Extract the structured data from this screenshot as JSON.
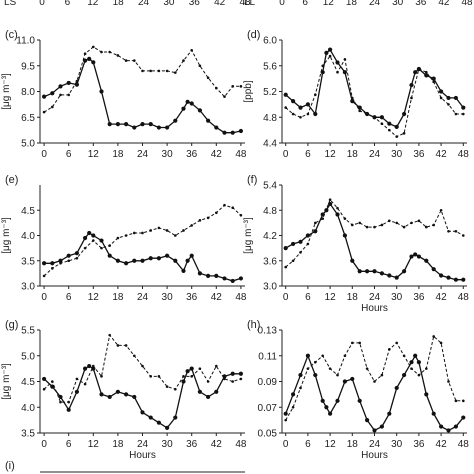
{
  "top_strip": {
    "left_hours": [
      "0",
      "6",
      "12",
      "18",
      "24",
      "30",
      "36",
      "42",
      "48"
    ],
    "left_cut_label": "LS",
    "right_cut_label": "LL"
  },
  "chart_data": [
    {
      "id": "c",
      "type": "line",
      "panel_label": "(c)",
      "ylabel": "[μg m⁻³]",
      "xlabel": "",
      "ylim": [
        5.0,
        11.0
      ],
      "yticks": [
        "5.0",
        "6.5",
        "8.0",
        "9.5",
        "11.0"
      ],
      "xlim": [
        -1,
        49
      ],
      "xticks": [
        "0",
        "6",
        "12",
        "18",
        "24",
        "30",
        "36",
        "42",
        "48"
      ],
      "series": [
        {
          "style": "solid",
          "x": [
            0,
            2,
            4,
            6,
            8,
            10,
            11,
            12,
            14,
            16,
            18,
            20,
            22,
            24,
            26,
            28,
            30,
            32,
            34,
            35,
            36,
            38,
            40,
            42,
            44,
            46,
            48
          ],
          "values": [
            7.7,
            7.9,
            8.3,
            8.5,
            8.4,
            9.8,
            9.9,
            9.7,
            8.0,
            6.1,
            6.1,
            6.1,
            5.9,
            6.1,
            6.1,
            5.9,
            5.9,
            6.3,
            7.0,
            7.4,
            7.3,
            6.9,
            6.3,
            5.9,
            5.6,
            5.6,
            5.7
          ]
        },
        {
          "style": "dashed",
          "x": [
            0,
            2,
            4,
            6,
            8,
            10,
            12,
            14,
            16,
            18,
            20,
            22,
            24,
            26,
            28,
            30,
            32,
            34,
            36,
            38,
            40,
            42,
            44,
            46,
            48
          ],
          "values": [
            6.8,
            7.1,
            7.8,
            7.8,
            8.6,
            10.2,
            10.6,
            10.3,
            10.3,
            10.1,
            9.8,
            9.8,
            9.2,
            9.2,
            9.2,
            9.2,
            9.1,
            9.8,
            10.4,
            9.5,
            8.8,
            8.2,
            7.7,
            8.3,
            8.3
          ]
        }
      ]
    },
    {
      "id": "d",
      "type": "line",
      "panel_label": "(d)",
      "ylabel": "[ppb]",
      "xlabel": "",
      "ylim": [
        4.4,
        6.0
      ],
      "yticks": [
        "4.4",
        "4.8",
        "5.2",
        "5.6",
        "6.0"
      ],
      "xlim": [
        -1,
        49
      ],
      "xticks": [
        "0",
        "6",
        "12",
        "18",
        "24",
        "30",
        "36",
        "42",
        "48"
      ],
      "series": [
        {
          "style": "solid",
          "x": [
            0,
            2,
            4,
            6,
            8,
            10,
            11,
            12,
            14,
            16,
            18,
            20,
            22,
            24,
            26,
            28,
            30,
            32,
            34,
            35,
            36,
            38,
            40,
            42,
            44,
            46,
            48
          ],
          "values": [
            5.15,
            5.05,
            4.95,
            5.0,
            4.85,
            5.5,
            5.8,
            5.85,
            5.65,
            5.5,
            5.05,
            4.95,
            4.85,
            4.8,
            4.8,
            4.7,
            4.65,
            4.85,
            5.3,
            5.5,
            5.55,
            5.45,
            5.4,
            5.2,
            5.1,
            5.1,
            4.95
          ]
        },
        {
          "style": "dashed",
          "x": [
            0,
            2,
            4,
            6,
            8,
            10,
            12,
            14,
            16,
            18,
            20,
            22,
            24,
            26,
            28,
            30,
            32,
            34,
            36,
            38,
            40,
            42,
            44,
            46,
            48
          ],
          "values": [
            4.95,
            4.85,
            4.8,
            4.85,
            5.15,
            5.6,
            5.75,
            5.5,
            5.7,
            5.1,
            4.9,
            4.85,
            4.8,
            4.7,
            4.6,
            4.5,
            4.55,
            5.1,
            5.55,
            5.5,
            5.35,
            5.1,
            5.0,
            4.85,
            4.85
          ]
        }
      ]
    },
    {
      "id": "e",
      "type": "line",
      "panel_label": "(e)",
      "ylabel": "[μg m⁻³]",
      "xlabel": "",
      "ylim": [
        3.0,
        5.0
      ],
      "yticks": [
        "3.0",
        "3.5",
        "4.0",
        "4.5"
      ],
      "xlim": [
        -1,
        49
      ],
      "xticks": [
        "0",
        "6",
        "12",
        "18",
        "24",
        "30",
        "36",
        "42",
        "48"
      ],
      "series": [
        {
          "style": "solid",
          "x": [
            0,
            2,
            4,
            6,
            8,
            10,
            11,
            12,
            14,
            16,
            18,
            20,
            22,
            24,
            26,
            28,
            30,
            32,
            34,
            35,
            36,
            38,
            40,
            42,
            44,
            46,
            48
          ],
          "values": [
            3.45,
            3.45,
            3.5,
            3.6,
            3.65,
            3.95,
            4.05,
            4.0,
            3.9,
            3.6,
            3.5,
            3.45,
            3.5,
            3.5,
            3.55,
            3.55,
            3.6,
            3.5,
            3.3,
            3.5,
            3.6,
            3.25,
            3.2,
            3.2,
            3.15,
            3.1,
            3.15
          ]
        },
        {
          "style": "dashed",
          "x": [
            0,
            2,
            4,
            6,
            8,
            10,
            12,
            14,
            16,
            18,
            20,
            22,
            24,
            26,
            28,
            30,
            32,
            34,
            36,
            38,
            40,
            42,
            44,
            46,
            48
          ],
          "values": [
            3.2,
            3.35,
            3.45,
            3.5,
            3.55,
            3.75,
            3.9,
            3.75,
            3.8,
            3.95,
            4.0,
            4.05,
            4.05,
            4.1,
            4.15,
            4.1,
            4.0,
            4.1,
            4.2,
            4.3,
            4.35,
            4.45,
            4.6,
            4.55,
            4.4
          ]
        }
      ]
    },
    {
      "id": "f",
      "type": "line",
      "panel_label": "(f)",
      "ylabel": "[μg m⁻³]",
      "xlabel": "Hours",
      "ylim": [
        3.0,
        5.4
      ],
      "yticks": [
        "3.0",
        "3.6",
        "4.2",
        "4.8",
        "5.4"
      ],
      "xlim": [
        -1,
        49
      ],
      "xticks": [
        "0",
        "6",
        "12",
        "18",
        "24",
        "30",
        "36",
        "42",
        "48"
      ],
      "series": [
        {
          "style": "solid",
          "x": [
            0,
            2,
            4,
            6,
            8,
            10,
            11,
            12,
            14,
            16,
            18,
            20,
            22,
            24,
            26,
            28,
            30,
            32,
            34,
            35,
            36,
            38,
            40,
            42,
            44,
            46,
            48
          ],
          "values": [
            3.9,
            4.0,
            4.05,
            4.2,
            4.3,
            4.7,
            4.8,
            4.95,
            4.7,
            4.2,
            3.6,
            3.35,
            3.35,
            3.35,
            3.3,
            3.25,
            3.2,
            3.35,
            3.7,
            3.75,
            3.7,
            3.6,
            3.4,
            3.25,
            3.2,
            3.15,
            3.15
          ]
        },
        {
          "style": "dashed",
          "x": [
            0,
            2,
            4,
            6,
            8,
            10,
            12,
            14,
            16,
            18,
            20,
            22,
            24,
            26,
            28,
            30,
            32,
            34,
            36,
            38,
            40,
            42,
            44,
            46,
            48
          ],
          "values": [
            3.45,
            3.6,
            3.8,
            4.0,
            4.5,
            4.6,
            5.05,
            4.85,
            4.6,
            4.45,
            4.5,
            4.4,
            4.4,
            4.45,
            4.55,
            4.5,
            4.4,
            4.5,
            4.55,
            4.4,
            4.45,
            4.8,
            4.3,
            4.3,
            4.2
          ]
        }
      ]
    },
    {
      "id": "g",
      "type": "line",
      "panel_label": "(g)",
      "ylabel": "[μg m⁻³]",
      "xlabel": "Hours",
      "ylim": [
        3.5,
        5.5
      ],
      "yticks": [
        "3.5",
        "4.0",
        "4.5",
        "5.0",
        "5.5"
      ],
      "xlim": [
        -1,
        49
      ],
      "xticks": [
        "0",
        "6",
        "12",
        "18",
        "24",
        "30",
        "36",
        "42",
        "48"
      ],
      "series": [
        {
          "style": "solid",
          "x": [
            0,
            2,
            4,
            6,
            8,
            10,
            11,
            12,
            14,
            16,
            18,
            20,
            22,
            24,
            26,
            28,
            30,
            32,
            34,
            35,
            36,
            38,
            40,
            42,
            44,
            46,
            48
          ],
          "values": [
            4.55,
            4.4,
            4.2,
            3.95,
            4.3,
            4.75,
            4.8,
            4.75,
            4.25,
            4.2,
            4.3,
            4.25,
            4.2,
            3.9,
            3.8,
            3.7,
            3.6,
            3.8,
            4.5,
            4.7,
            4.75,
            4.3,
            4.2,
            4.3,
            4.6,
            4.65,
            4.65
          ]
        },
        {
          "style": "dashed",
          "x": [
            0,
            2,
            4,
            6,
            8,
            10,
            12,
            14,
            16,
            18,
            20,
            22,
            24,
            26,
            28,
            30,
            32,
            34,
            36,
            38,
            40,
            42,
            44,
            46,
            48
          ],
          "values": [
            4.35,
            4.5,
            4.1,
            4.1,
            4.55,
            4.45,
            4.8,
            4.6,
            5.4,
            5.2,
            5.2,
            5.0,
            4.8,
            4.6,
            4.6,
            4.4,
            4.35,
            4.6,
            4.6,
            4.75,
            4.5,
            4.8,
            4.55,
            4.5,
            4.55
          ]
        }
      ]
    },
    {
      "id": "h",
      "type": "line",
      "panel_label": "(h)",
      "ylabel": "",
      "xlabel": "Hours",
      "ylim": [
        0.05,
        0.13
      ],
      "yticks": [
        "0.05",
        "0.07",
        "0.09",
        "0.11",
        "0.13"
      ],
      "xlim": [
        -1,
        49
      ],
      "xticks": [
        "0",
        "6",
        "12",
        "18",
        "24",
        "30",
        "36",
        "42",
        "48"
      ],
      "series": [
        {
          "style": "solid",
          "x": [
            0,
            2,
            4,
            6,
            8,
            10,
            11,
            12,
            14,
            16,
            18,
            20,
            22,
            24,
            26,
            28,
            30,
            32,
            34,
            35,
            36,
            38,
            40,
            42,
            44,
            46,
            48
          ],
          "values": [
            0.065,
            0.08,
            0.095,
            0.11,
            0.095,
            0.075,
            0.07,
            0.065,
            0.075,
            0.09,
            0.092,
            0.075,
            0.06,
            0.052,
            0.055,
            0.065,
            0.085,
            0.095,
            0.105,
            0.11,
            0.105,
            0.08,
            0.065,
            0.055,
            0.052,
            0.055,
            0.062
          ]
        },
        {
          "style": "dashed",
          "x": [
            0,
            2,
            4,
            6,
            8,
            10,
            12,
            14,
            16,
            18,
            20,
            22,
            24,
            26,
            28,
            30,
            32,
            34,
            36,
            38,
            40,
            42,
            44,
            46,
            48
          ],
          "values": [
            0.06,
            0.07,
            0.085,
            0.1,
            0.105,
            0.11,
            0.1,
            0.095,
            0.11,
            0.12,
            0.12,
            0.1,
            0.09,
            0.095,
            0.115,
            0.12,
            0.11,
            0.1,
            0.095,
            0.1,
            0.125,
            0.12,
            0.09,
            0.075,
            0.075
          ]
        }
      ]
    }
  ],
  "bottom_strip": {
    "panel_label": "(i)"
  }
}
